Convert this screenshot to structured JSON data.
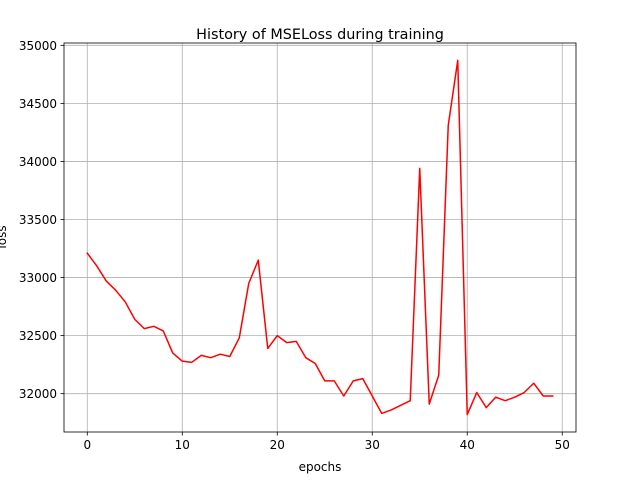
{
  "chart_data": {
    "type": "line",
    "title": "History of MSELoss during training",
    "xlabel": "epochs",
    "ylabel": "loss",
    "xlim": [
      -2.45,
      51.45
    ],
    "ylim": [
      31670,
      35020
    ],
    "xticks": [
      0,
      10,
      20,
      30,
      40,
      50
    ],
    "yticks": [
      32000,
      32500,
      33000,
      33500,
      34000,
      34500,
      35000
    ],
    "grid": true,
    "series": [
      {
        "color": "#ff0000",
        "x": [
          0,
          1,
          2,
          3,
          4,
          5,
          6,
          7,
          8,
          9,
          10,
          11,
          12,
          13,
          14,
          15,
          16,
          17,
          18,
          19,
          20,
          21,
          22,
          23,
          24,
          25,
          26,
          27,
          28,
          29,
          30,
          31,
          32,
          33,
          34,
          35,
          36,
          37,
          38,
          39,
          40,
          41,
          42,
          43,
          44,
          45,
          46,
          47,
          48,
          49
        ],
        "y": [
          33210,
          33100,
          32970,
          32890,
          32790,
          32640,
          32560,
          32580,
          32540,
          32350,
          32280,
          32270,
          32330,
          32310,
          32340,
          32320,
          32480,
          32950,
          33150,
          32390,
          32500,
          32440,
          32450,
          32310,
          32260,
          32110,
          32110,
          31980,
          32110,
          32130,
          31980,
          31830,
          31860,
          31900,
          31940,
          33940,
          31910,
          32160,
          34310,
          34870,
          31820,
          32010,
          31880,
          31970,
          31940,
          31970,
          32010,
          32090,
          31980,
          31980
        ]
      }
    ]
  }
}
